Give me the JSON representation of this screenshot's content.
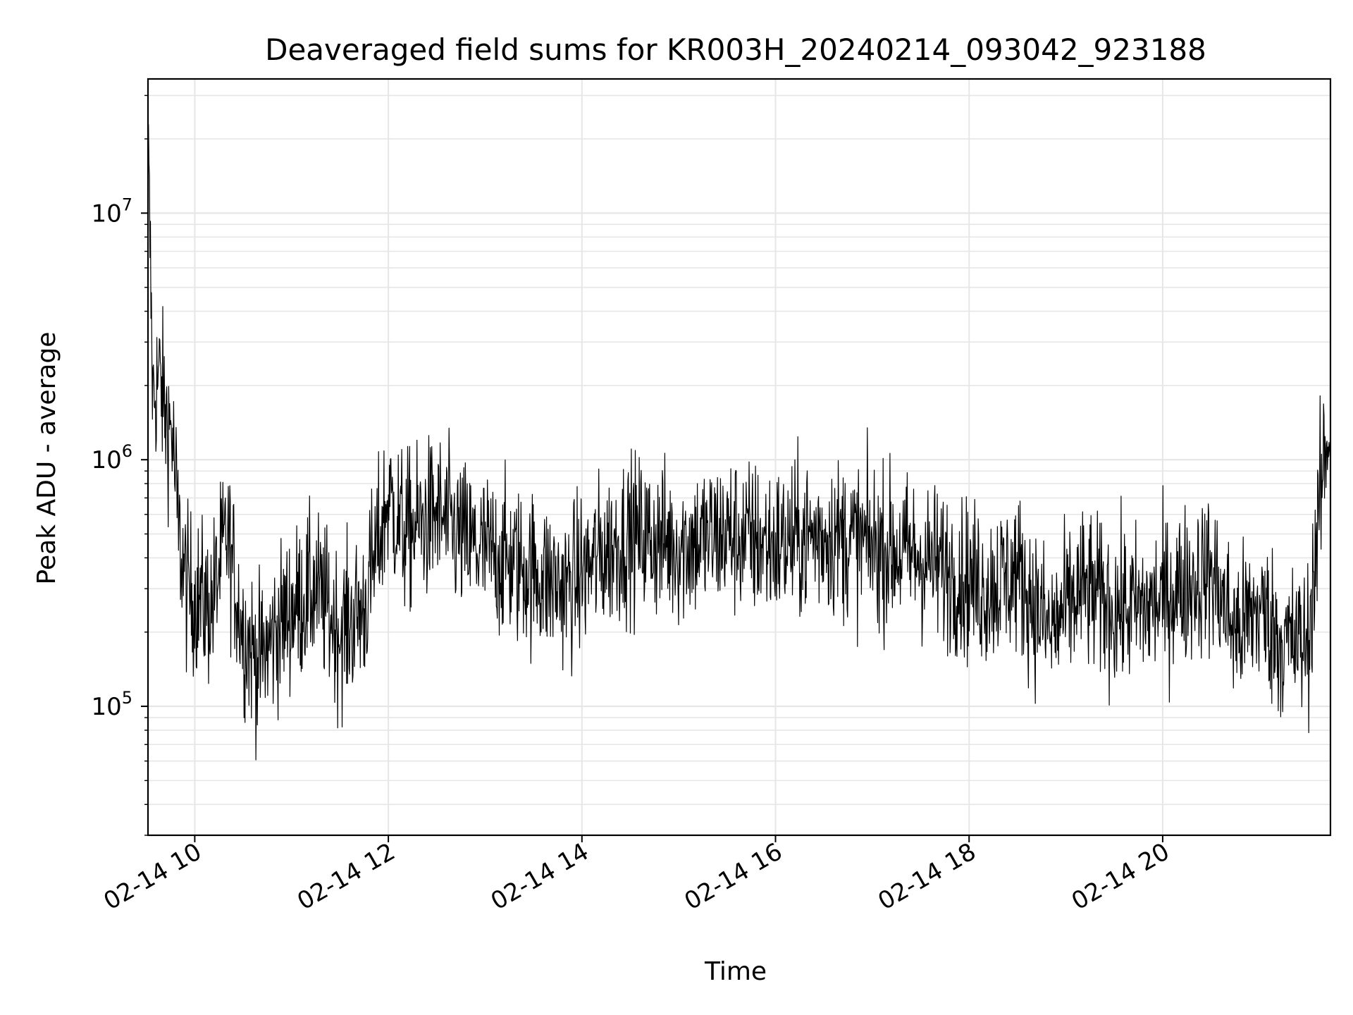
{
  "chart_data": {
    "type": "line",
    "title": "Deaveraged field sums for KR003H_20240214_093042_923188",
    "xlabel": "Time",
    "ylabel": "Peak ADU - average",
    "yscale": "log",
    "ylim": [
      30000,
      35000000
    ],
    "xlim": [
      "2024-02-14T09:31",
      "2024-02-14T21:44"
    ],
    "grid": true,
    "line_color": "#000000",
    "grid_color": "#e6e6e6",
    "x_ticks": [
      {
        "value": "2024-02-14T10:00",
        "label": "02-14 10"
      },
      {
        "value": "2024-02-14T12:00",
        "label": "02-14 12"
      },
      {
        "value": "2024-02-14T14:00",
        "label": "02-14 14"
      },
      {
        "value": "2024-02-14T16:00",
        "label": "02-14 16"
      },
      {
        "value": "2024-02-14T18:00",
        "label": "02-14 18"
      },
      {
        "value": "2024-02-14T20:00",
        "label": "02-14 20"
      }
    ],
    "y_ticks": [
      {
        "value": 100000,
        "base": "10",
        "exp": "5"
      },
      {
        "value": 1000000,
        "base": "10",
        "exp": "6"
      },
      {
        "value": 10000000,
        "base": "10",
        "exp": "7"
      }
    ],
    "series": [
      {
        "x": [
          "2024-02-14T09:31",
          "2024-02-14T09:34",
          "2024-02-14T09:38",
          "2024-02-14T09:42",
          "2024-02-14T09:46",
          "2024-02-14T09:50",
          "2024-02-14T09:55",
          "2024-02-14T10:00",
          "2024-02-14T10:10",
          "2024-02-14T10:20",
          "2024-02-14T10:30",
          "2024-02-14T10:40",
          "2024-02-14T10:50",
          "2024-02-14T11:00",
          "2024-02-14T11:15",
          "2024-02-14T11:30",
          "2024-02-14T11:45",
          "2024-02-14T12:00",
          "2024-02-14T12:10",
          "2024-02-14T12:30",
          "2024-02-14T12:50",
          "2024-02-14T13:10",
          "2024-02-14T13:30",
          "2024-02-14T13:50",
          "2024-02-14T14:10",
          "2024-02-14T14:30",
          "2024-02-14T15:00",
          "2024-02-14T15:30",
          "2024-02-14T16:00",
          "2024-02-14T16:30",
          "2024-02-14T17:00",
          "2024-02-14T17:30",
          "2024-02-14T17:50",
          "2024-02-14T18:10",
          "2024-02-14T18:30",
          "2024-02-14T18:50",
          "2024-02-14T19:10",
          "2024-02-14T19:30",
          "2024-02-14T19:50",
          "2024-02-14T20:10",
          "2024-02-14T20:30",
          "2024-02-14T20:45",
          "2024-02-14T21:00",
          "2024-02-14T21:15",
          "2024-02-14T21:30",
          "2024-02-14T21:40",
          "2024-02-14T21:44"
        ],
        "y": [
          20000000,
          1800000,
          2200000,
          1500000,
          1300000,
          500000,
          300000,
          280000,
          250000,
          500000,
          200000,
          150000,
          200000,
          250000,
          300000,
          200000,
          250000,
          700000,
          500000,
          600000,
          450000,
          400000,
          350000,
          300000,
          400000,
          500000,
          450000,
          500000,
          450000,
          500000,
          450000,
          400000,
          350000,
          300000,
          350000,
          200000,
          300000,
          250000,
          250000,
          300000,
          350000,
          200000,
          250000,
          180000,
          180000,
          1000000,
          1400000
        ]
      }
    ]
  }
}
